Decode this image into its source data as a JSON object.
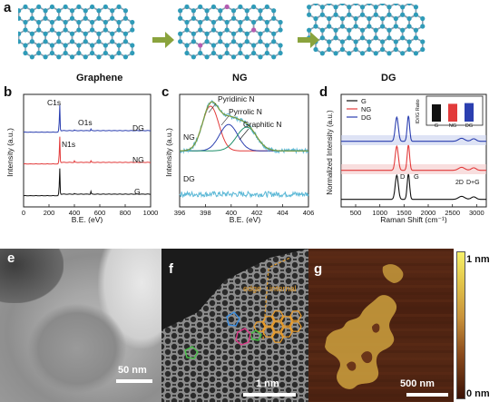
{
  "panel_a": {
    "letter": "a",
    "structures": [
      "Graphene",
      "NG",
      "DG"
    ]
  },
  "panel_b": {
    "letter": "b",
    "ylabel": "Intensity (a.u.)",
    "xlabel": "B.E. (eV)",
    "xticks": [
      "0",
      "200",
      "400",
      "600",
      "800",
      "1000"
    ],
    "peaks": [
      "C1s",
      "N1s",
      "O1s"
    ],
    "traces": [
      "DG",
      "NG",
      "G"
    ]
  },
  "panel_c": {
    "letter": "c",
    "ylabel": "Intensity (a.u.)",
    "xlabel": "B.E. (eV)",
    "xticks": [
      "396",
      "398",
      "400",
      "402",
      "404",
      "406"
    ],
    "components": [
      "Pyridinic N",
      "Pyrrolic N",
      "Graphitic N"
    ],
    "traces": [
      "NG",
      "DG"
    ]
  },
  "panel_d": {
    "letter": "d",
    "ylabel": "Normalized Intensity (a.u.)",
    "xlabel": "Raman Shift (cm⁻¹)",
    "xticks": [
      "500",
      "1000",
      "1500",
      "2000",
      "2500",
      "3000"
    ],
    "legend": [
      "G",
      "NG",
      "DG"
    ],
    "peak_labels": [
      "D",
      "G",
      "2D",
      "D+G"
    ],
    "inset": {
      "ylabel": "ID/IG Ratio",
      "categories": [
        "G",
        "NG",
        "DG"
      ],
      "yticks": [
        "0.0",
        "0.5",
        "1.0"
      ],
      "values": [
        0.95,
        0.98,
        1.02
      ],
      "colors": [
        "#111111",
        "#e23b3b",
        "#2b3fb0"
      ]
    }
  },
  "panel_e": {
    "letter": "e",
    "scalebar": "50 nm"
  },
  "panel_f": {
    "letter": "f",
    "scalebar": "1 nm",
    "labels": [
      "edge",
      "internal"
    ]
  },
  "panel_g": {
    "letter": "g",
    "scalebar": "500 nm",
    "colorbar_max": "1 nm",
    "colorbar_min": "0 nm"
  },
  "chart_data": [
    {
      "type": "line",
      "title": "",
      "xlabel": "B.E. (eV)",
      "ylabel": "Intensity (a.u.)",
      "xlim": [
        0,
        1000
      ],
      "series": [
        {
          "name": "DG",
          "color": "#2b3fb0",
          "x": [
            0,
            100,
            200,
            270,
            284,
            300,
            400,
            531,
            600,
            800,
            1000
          ],
          "y": [
            0.02,
            0.02,
            0.03,
            0.05,
            0.9,
            0.06,
            0.04,
            0.08,
            0.04,
            0.03,
            0.03
          ]
        },
        {
          "name": "NG",
          "color": "#e23b3b",
          "x": [
            0,
            100,
            200,
            270,
            284,
            300,
            400,
            531,
            600,
            800,
            1000
          ],
          "y": [
            0.02,
            0.02,
            0.03,
            0.05,
            0.9,
            0.06,
            0.07,
            0.1,
            0.05,
            0.04,
            0.03
          ]
        },
        {
          "name": "G",
          "color": "#111111",
          "x": [
            0,
            100,
            200,
            270,
            284,
            300,
            400,
            531,
            600,
            800,
            1000
          ],
          "y": [
            0.02,
            0.02,
            0.03,
            0.05,
            0.9,
            0.06,
            0.04,
            0.12,
            0.05,
            0.04,
            0.03
          ]
        }
      ]
    },
    {
      "type": "line",
      "title": "",
      "xlabel": "B.E. (eV)",
      "ylabel": "Intensity (a.u.)",
      "xlim": [
        396,
        406
      ],
      "series": [
        {
          "name": "NG",
          "color": "#5bb8d6",
          "x": [
            396,
            397,
            398,
            398.5,
            399,
            400,
            401,
            402,
            403,
            404,
            405,
            406
          ],
          "y": [
            0.1,
            0.35,
            0.85,
            0.95,
            0.8,
            0.55,
            0.5,
            0.35,
            0.2,
            0.15,
            0.12,
            0.1
          ]
        },
        {
          "name": "DG",
          "color": "#5bb8d6",
          "x": [
            396,
            398,
            400,
            402,
            404,
            406
          ],
          "y": [
            0.05,
            0.05,
            0.05,
            0.05,
            0.05,
            0.05
          ]
        }
      ]
    },
    {
      "type": "line",
      "title": "",
      "xlabel": "Raman Shift (cm⁻¹)",
      "ylabel": "Normalized Intensity (a.u.)",
      "xlim": [
        200,
        3200
      ],
      "series": [
        {
          "name": "G",
          "color": "#111111",
          "x": [
            200,
            1000,
            1350,
            1450,
            1590,
            1800,
            2700,
            2940,
            3200
          ],
          "y": [
            0.0,
            0.02,
            0.95,
            0.3,
            1.0,
            0.05,
            0.15,
            0.12,
            0.02
          ]
        },
        {
          "name": "NG",
          "color": "#e23b3b",
          "x": [
            200,
            1000,
            1350,
            1450,
            1590,
            1800,
            2700,
            2940,
            3200
          ],
          "y": [
            0.0,
            0.02,
            0.95,
            0.3,
            1.0,
            0.05,
            0.12,
            0.1,
            0.02
          ]
        },
        {
          "name": "DG",
          "color": "#2b3fb0",
          "x": [
            200,
            1000,
            1350,
            1450,
            1590,
            1800,
            2700,
            2940,
            3200
          ],
          "y": [
            0.0,
            0.02,
            0.98,
            0.3,
            1.0,
            0.05,
            0.1,
            0.1,
            0.02
          ]
        }
      ]
    },
    {
      "type": "bar",
      "title": "",
      "ylabel": "ID/IG Ratio",
      "categories": [
        "G",
        "NG",
        "DG"
      ],
      "values": [
        0.95,
        0.98,
        1.02
      ],
      "ylim": [
        0,
        1.2
      ]
    }
  ]
}
